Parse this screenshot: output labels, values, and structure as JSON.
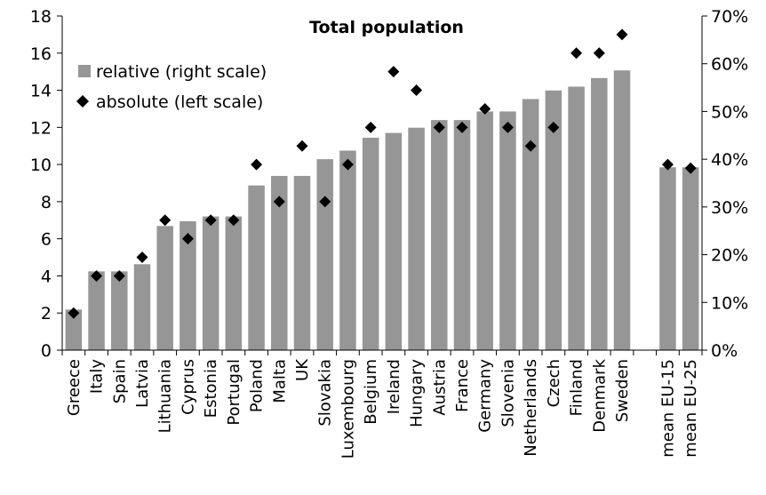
{
  "chart_data": {
    "type": "bar",
    "title": "Total population",
    "categories": [
      "Greece",
      "Italy",
      "Spain",
      "Latvia",
      "Lithuania",
      "Cyprus",
      "Estonia",
      "Portugal",
      "Poland",
      "Malta",
      "UK",
      "Slovakia",
      "Luxembourg",
      "Belgium",
      "Ireland",
      "Hungary",
      "Austria",
      "France",
      "Germany",
      "Slovenia",
      "Netherlands",
      "Czech",
      "Finland",
      "Denmark",
      "Sweden",
      "",
      "mean EU-15",
      "mean EU-25"
    ],
    "series": [
      {
        "name": "relative (right scale)",
        "kind": "bar",
        "axis": "right",
        "color": "#969696",
        "values": [
          8.5,
          16.5,
          16.5,
          18,
          26,
          27,
          28,
          28,
          34.5,
          36.5,
          36.5,
          40,
          41.8,
          44.5,
          45.5,
          46.6,
          48.2,
          48.2,
          50,
          50,
          52.6,
          54.4,
          55.2,
          57,
          58.6,
          null,
          38.3,
          38.3
        ]
      },
      {
        "name": "absolute (left scale)",
        "kind": "marker",
        "marker": "diamond",
        "axis": "left",
        "color": "#000000",
        "values": [
          2,
          4,
          4,
          5,
          7,
          6,
          7,
          7,
          10,
          8,
          11,
          8,
          10,
          12,
          15,
          14,
          12,
          12,
          13,
          12,
          11,
          12,
          16,
          16,
          17,
          null,
          10,
          9.8
        ]
      }
    ],
    "y_left": {
      "ylim": [
        0,
        18
      ],
      "ticks": [
        "0",
        "2",
        "4",
        "6",
        "8",
        "10",
        "12",
        "14",
        "16",
        "18"
      ]
    },
    "y_right": {
      "ylim": [
        0,
        70
      ],
      "ticks": [
        "0%",
        "10%",
        "20%",
        "30%",
        "40%",
        "50%",
        "60%",
        "70%"
      ]
    },
    "legend_position": "top-left",
    "grid": false
  }
}
